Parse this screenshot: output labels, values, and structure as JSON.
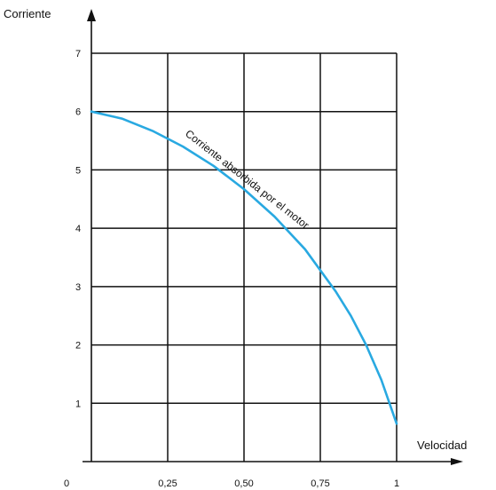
{
  "chart_data": {
    "type": "line",
    "ylabel": "Corriente",
    "xlabel": "Velocidad",
    "xlim": [
      0,
      1
    ],
    "ylim": [
      0,
      7
    ],
    "x_ticks": [
      0,
      0.25,
      0.5,
      0.75,
      1
    ],
    "x_tick_labels": [
      "0",
      "0,25",
      "0,50",
      "0,75",
      "1"
    ],
    "y_ticks": [
      1,
      2,
      3,
      4,
      5,
      6,
      7
    ],
    "y_tick_labels": [
      "1",
      "2",
      "3",
      "4",
      "5",
      "6",
      "7"
    ],
    "grid": true,
    "colors": {
      "curve": "#29a9e1",
      "grid": "#111111",
      "axis": "#111111"
    },
    "series": [
      {
        "name": "Corriente absorbida por el motor",
        "x": [
          0,
          0.1,
          0.2,
          0.3,
          0.4,
          0.5,
          0.6,
          0.7,
          0.8,
          0.85,
          0.9,
          0.95,
          1.0
        ],
        "y": [
          6.0,
          5.88,
          5.67,
          5.4,
          5.07,
          4.67,
          4.2,
          3.64,
          2.92,
          2.5,
          2.0,
          1.4,
          0.65
        ]
      }
    ],
    "annotation": "Corriente absorbida por el motor"
  }
}
